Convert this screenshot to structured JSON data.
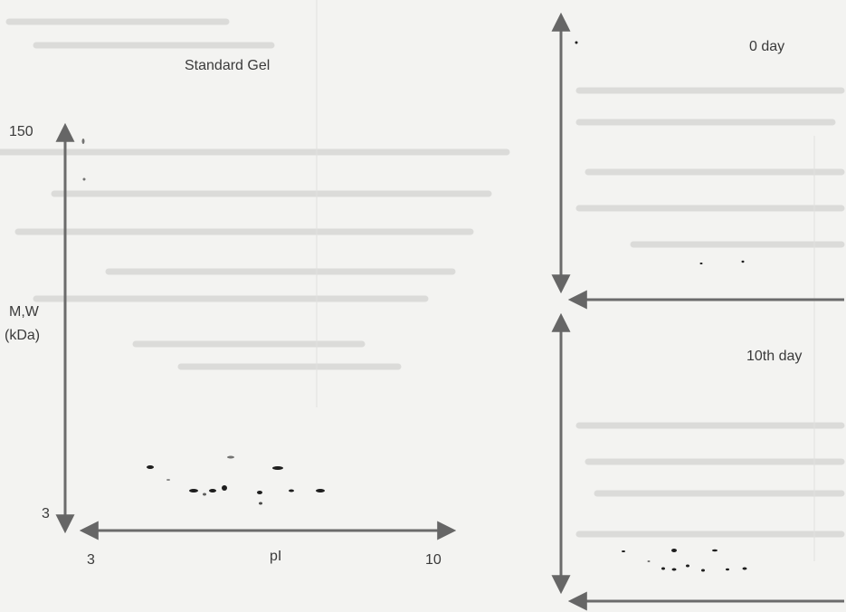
{
  "standard_panel": {
    "title": "Standard Gel",
    "y_axis_label_line1": "M,W",
    "y_axis_label_line2": "(kDa)",
    "y_tick_top": "150",
    "y_tick_bottom": "3",
    "x_axis_label": "pI",
    "x_tick_left": "3",
    "x_tick_right": "10"
  },
  "day0_panel": {
    "title": "0 day"
  },
  "day10_panel": {
    "title": "10th day"
  },
  "colors": {
    "arrow": "#6b6b6b",
    "spot": "#1e1e1e",
    "ghost_text": "#d6d6d4"
  }
}
